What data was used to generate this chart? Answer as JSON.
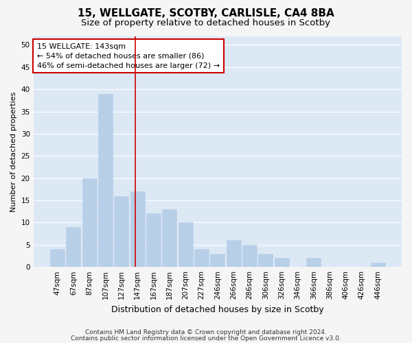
{
  "title1": "15, WELLGATE, SCOTBY, CARLISLE, CA4 8BA",
  "title2": "Size of property relative to detached houses in Scotby",
  "xlabel": "Distribution of detached houses by size in Scotby",
  "ylabel": "Number of detached properties",
  "categories": [
    "47sqm",
    "67sqm",
    "87sqm",
    "107sqm",
    "127sqm",
    "147sqm",
    "167sqm",
    "187sqm",
    "207sqm",
    "227sqm",
    "246sqm",
    "266sqm",
    "286sqm",
    "306sqm",
    "326sqm",
    "346sqm",
    "366sqm",
    "386sqm",
    "406sqm",
    "426sqm",
    "446sqm"
  ],
  "values": [
    4,
    9,
    20,
    39,
    16,
    17,
    12,
    13,
    10,
    4,
    3,
    6,
    5,
    3,
    2,
    0,
    2,
    0,
    0,
    0,
    1
  ],
  "bar_color": "#b8cfe8",
  "bar_edge_color": "#b8cfe8",
  "background_color": "#dde8f5",
  "grid_color": "#ffffff",
  "vline_x_idx": 4.85,
  "vline_color": "#cc0000",
  "annotation_text": "15 WELLGATE: 143sqm\n← 54% of detached houses are smaller (86)\n46% of semi-detached houses are larger (72) →",
  "annotation_box_color": "#ffffff",
  "annotation_box_edge": "#cc0000",
  "footer1": "Contains HM Land Registry data © Crown copyright and database right 2024.",
  "footer2": "Contains public sector information licensed under the Open Government Licence v3.0.",
  "ylim": [
    0,
    52
  ],
  "yticks": [
    0,
    5,
    10,
    15,
    20,
    25,
    30,
    35,
    40,
    45,
    50
  ],
  "title1_fontsize": 11,
  "title2_fontsize": 9.5,
  "xlabel_fontsize": 9,
  "ylabel_fontsize": 8,
  "tick_fontsize": 7.5,
  "annotation_fontsize": 8,
  "footer_fontsize": 6.5
}
